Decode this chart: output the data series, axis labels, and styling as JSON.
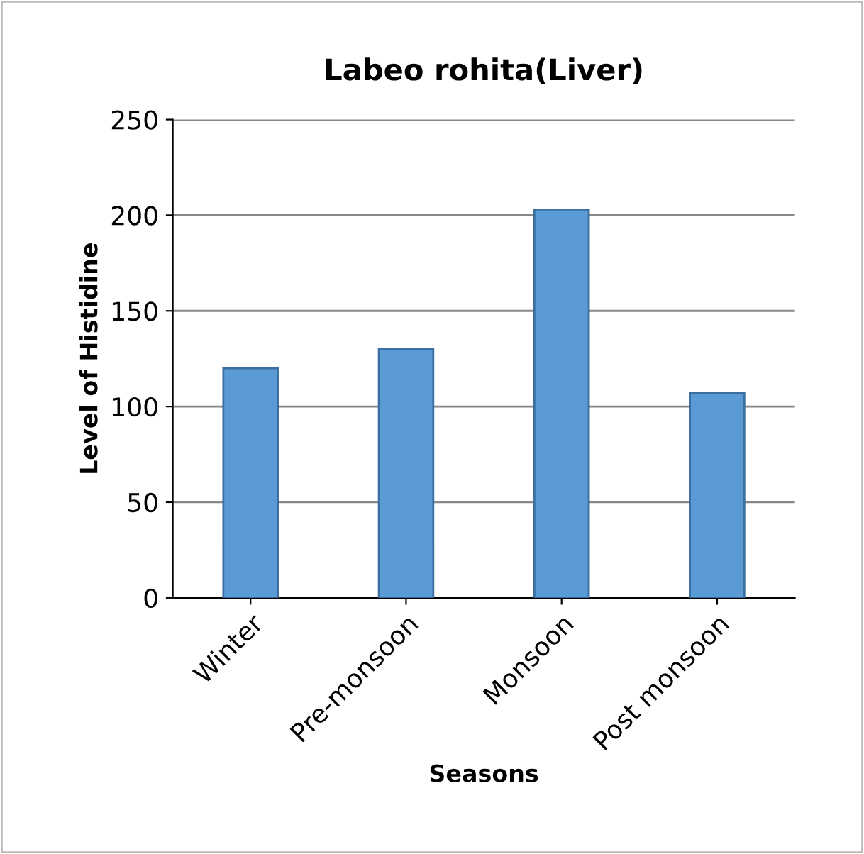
{
  "chart_data": {
    "type": "bar",
    "title": "Labeo rohita(Liver)",
    "xlabel": "Seasons",
    "ylabel": "Level of Histidine",
    "categories": [
      "Winter",
      "Pre-monsoon",
      "Monsoon",
      "Post monsoon"
    ],
    "values": [
      120,
      130,
      203,
      107
    ],
    "color": "#5b9bd5",
    "ylim": [
      0,
      250
    ],
    "yticks": [
      0,
      50,
      100,
      150,
      200,
      250
    ],
    "grid": "y"
  }
}
